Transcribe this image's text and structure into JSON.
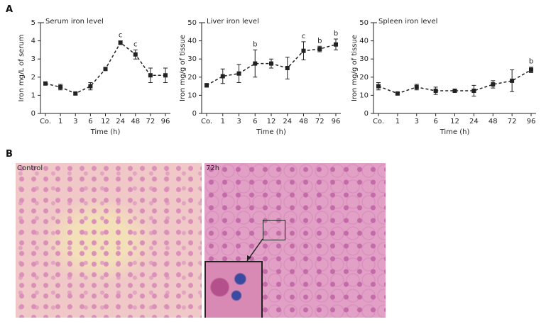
{
  "panel_labels": {
    "a": "A",
    "b": "B"
  },
  "images": {
    "left": "Control",
    "right": "72h"
  },
  "chart_data": [
    {
      "type": "line",
      "title": "Serum iron level",
      "x_label": "Time (h)",
      "y_label": "Iron mg/L of serum",
      "categories": [
        "Co.",
        "1",
        "3",
        "6",
        "12",
        "24",
        "48",
        "72",
        "96"
      ],
      "values": [
        1.65,
        1.45,
        1.1,
        1.5,
        2.45,
        3.9,
        3.25,
        2.1,
        2.1
      ],
      "errors": [
        0.05,
        0.15,
        0.05,
        0.2,
        0.05,
        0.1,
        0.25,
        0.4,
        0.4
      ],
      "point_labels": [
        null,
        null,
        null,
        null,
        null,
        "c",
        "c",
        null,
        null
      ],
      "color": "#222222",
      "ylim": [
        0,
        5
      ],
      "yticks": [
        0,
        1,
        2,
        3,
        4,
        5
      ]
    },
    {
      "type": "line",
      "title": "Liver iron level",
      "x_label": "Time (h)",
      "y_label": "Iron mg/g of tissue",
      "categories": [
        "Co.",
        "1",
        "3",
        "6",
        "12",
        "24",
        "48",
        "72",
        "96"
      ],
      "values": [
        15.5,
        20.5,
        22,
        27.5,
        27.5,
        25,
        34.5,
        35.5,
        38
      ],
      "errors": [
        1,
        4,
        5,
        7.5,
        2.5,
        6,
        5,
        1.5,
        3
      ],
      "point_labels": [
        null,
        null,
        null,
        "b",
        null,
        null,
        "c",
        "b",
        "b"
      ],
      "color": "#222222",
      "ylim": [
        0,
        50
      ],
      "yticks": [
        0,
        10,
        20,
        30,
        40,
        50
      ]
    },
    {
      "type": "line",
      "title": "Spleen iron level",
      "x_label": "Time (h)",
      "y_label": "Iron mg/g of tissue",
      "categories": [
        "Co.",
        "1",
        "3",
        "6",
        "12",
        "24",
        "48",
        "72",
        "96"
      ],
      "values": [
        15,
        11,
        14.5,
        12.5,
        12.5,
        12.5,
        16,
        18,
        24
      ],
      "errors": [
        2,
        0.5,
        1.5,
        2,
        1,
        3,
        2,
        6,
        1.5
      ],
      "point_labels": [
        null,
        null,
        null,
        null,
        null,
        null,
        null,
        null,
        "b"
      ],
      "color": "#222222",
      "ylim": [
        0,
        50
      ],
      "yticks": [
        0,
        10,
        20,
        30,
        40,
        50
      ]
    }
  ]
}
